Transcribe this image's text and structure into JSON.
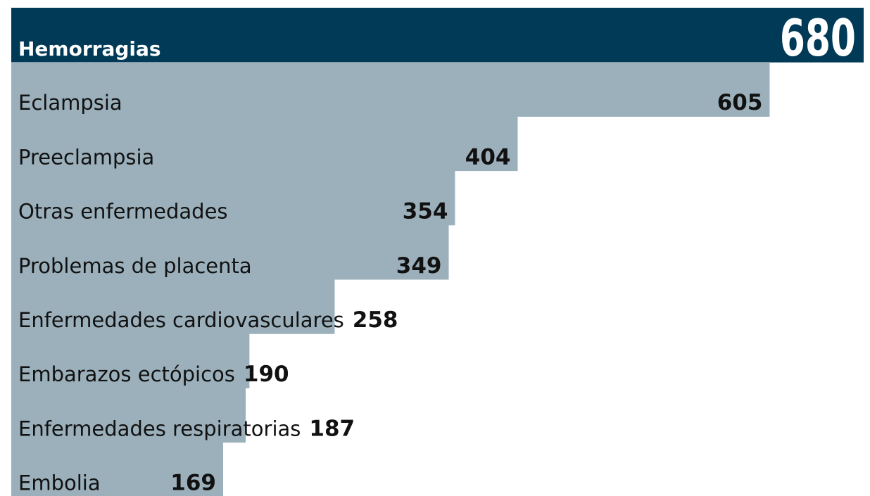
{
  "chart_data": {
    "type": "bar",
    "orientation": "horizontal",
    "categories": [
      "Hemorragias",
      "Eclampsia",
      "Preeclampsia",
      "Otras enfermedades",
      "Problemas de placenta",
      "Enfermedades cardiovasculares",
      "Embarazos ectópicos",
      "Enfermedades respiratorias",
      "Embolia"
    ],
    "values": [
      680,
      605,
      404,
      354,
      349,
      258,
      190,
      187,
      169
    ],
    "colors": [
      "#003a57",
      "#9bb0bb",
      "#9bb0bb",
      "#9bb0bb",
      "#9bb0bb",
      "#9bb0bb",
      "#9bb0bb",
      "#9bb0bb",
      "#9bb0bb"
    ]
  }
}
